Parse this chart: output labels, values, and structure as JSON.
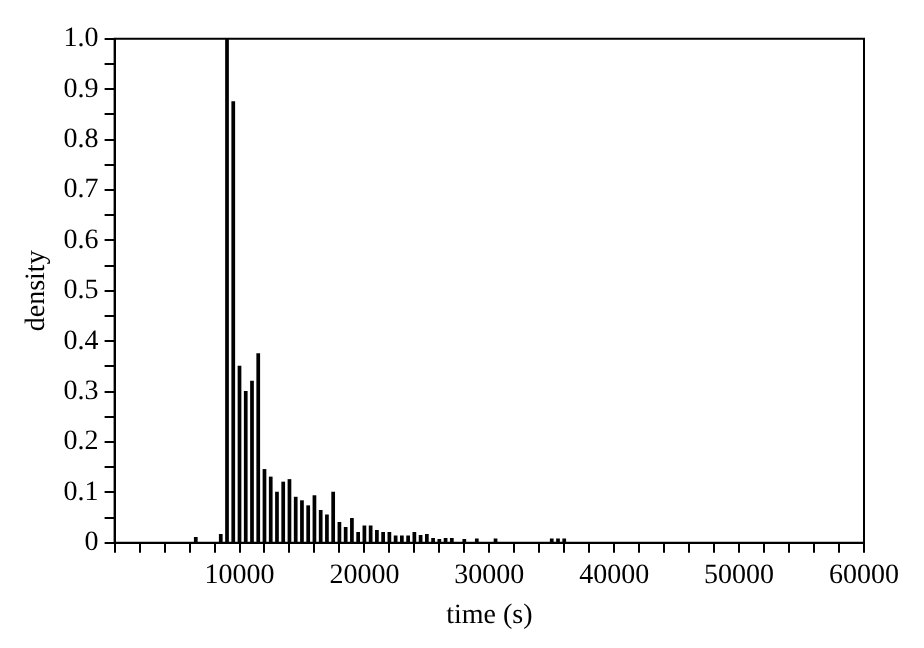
{
  "chart_data": {
    "type": "bar",
    "xlabel": "time (s)",
    "ylabel": "density",
    "color": "#000000",
    "x": [
      6500,
      8500,
      9000,
      9500,
      10000,
      10500,
      11000,
      11500,
      12000,
      12500,
      13000,
      13500,
      14000,
      14500,
      15000,
      15500,
      16000,
      16500,
      17000,
      17500,
      18000,
      18500,
      19000,
      19500,
      20000,
      20500,
      21000,
      21500,
      22000,
      22500,
      23000,
      23500,
      24000,
      24500,
      25000,
      25500,
      26000,
      26500,
      27000,
      28000,
      29000,
      30500,
      35000,
      35500,
      36000
    ],
    "values": [
      0.01,
      0.016,
      1.0,
      0.875,
      0.35,
      0.3,
      0.32,
      0.375,
      0.145,
      0.13,
      0.1,
      0.12,
      0.125,
      0.09,
      0.083,
      0.073,
      0.093,
      0.064,
      0.055,
      0.1,
      0.04,
      0.03,
      0.048,
      0.02,
      0.033,
      0.033,
      0.024,
      0.02,
      0.02,
      0.013,
      0.013,
      0.013,
      0.02,
      0.014,
      0.016,
      0.008,
      0.006,
      0.008,
      0.008,
      0.006,
      0.007,
      0.007,
      0.007,
      0.007,
      0.007
    ],
    "xlim": [
      0,
      60000
    ],
    "xticks": [
      {
        "value": 0,
        "label": null
      },
      {
        "value": 2000,
        "label": null
      },
      {
        "value": 4000,
        "label": null
      },
      {
        "value": 6000,
        "label": null
      },
      {
        "value": 8000,
        "label": null
      },
      {
        "value": 10000,
        "label": "10000"
      },
      {
        "value": 12000,
        "label": null
      },
      {
        "value": 14000,
        "label": null
      },
      {
        "value": 16000,
        "label": null
      },
      {
        "value": 18000,
        "label": null
      },
      {
        "value": 20000,
        "label": "20000"
      },
      {
        "value": 22000,
        "label": null
      },
      {
        "value": 24000,
        "label": null
      },
      {
        "value": 26000,
        "label": null
      },
      {
        "value": 28000,
        "label": null
      },
      {
        "value": 30000,
        "label": "30000"
      },
      {
        "value": 32000,
        "label": null
      },
      {
        "value": 34000,
        "label": null
      },
      {
        "value": 36000,
        "label": null
      },
      {
        "value": 38000,
        "label": null
      },
      {
        "value": 40000,
        "label": "40000"
      },
      {
        "value": 42000,
        "label": null
      },
      {
        "value": 44000,
        "label": null
      },
      {
        "value": 46000,
        "label": null
      },
      {
        "value": 48000,
        "label": null
      },
      {
        "value": 50000,
        "label": "50000"
      },
      {
        "value": 52000,
        "label": null
      },
      {
        "value": 54000,
        "label": null
      },
      {
        "value": 56000,
        "label": null
      },
      {
        "value": 58000,
        "label": null
      },
      {
        "value": 60000,
        "label": "60000"
      }
    ],
    "ylim": [
      0,
      1
    ],
    "yticks": [
      0,
      {
        "value": 0.05,
        "label": null
      },
      0.1,
      {
        "value": 0.15,
        "label": null
      },
      0.2,
      {
        "value": 0.25,
        "label": null
      },
      0.3,
      {
        "value": 0.35,
        "label": null
      },
      0.4,
      {
        "value": 0.45,
        "label": null
      },
      0.5,
      {
        "value": 0.55,
        "label": null
      },
      0.6,
      {
        "value": 0.65,
        "label": null
      },
      0.7,
      {
        "value": 0.75,
        "label": null
      },
      0.8,
      {
        "value": 0.85,
        "label": null
      },
      0.9,
      {
        "value": 0.95,
        "label": null
      },
      {
        "value": 1,
        "label": "1.0"
      }
    ],
    "grid": false,
    "legend": false
  }
}
